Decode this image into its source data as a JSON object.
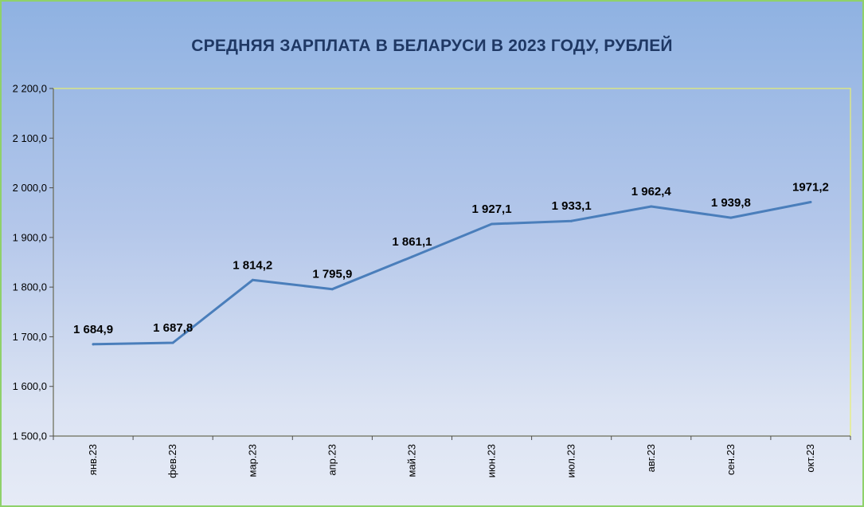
{
  "chart_data": {
    "type": "line",
    "title": "СРЕДНЯЯ ЗАРПЛАТА В БЕЛАРУСИ В 2023 ГОДУ, РУБЛЕЙ",
    "categories": [
      "янв.23",
      "фев.23",
      "мар.23",
      "апр.23",
      "май.23",
      "июн.23",
      "июл.23",
      "авг.23",
      "сен.23",
      "окт.23"
    ],
    "series": [
      {
        "values": [
          1684.9,
          1687.8,
          1814.2,
          1795.9,
          1861.1,
          1927.1,
          1933.1,
          1962.4,
          1939.8,
          1971.2
        ],
        "data_labels": [
          "1 684,9",
          "1 687,8",
          "1 814,2",
          "1 795,9",
          "1 861,1",
          "1 927,1",
          "1 933,1",
          "1 962,4",
          "1 939,8",
          "1971,2"
        ],
        "color": "#4a7ebb"
      }
    ],
    "ylim": [
      1500,
      2200
    ],
    "yticks": [
      1500,
      1600,
      1700,
      1800,
      1900,
      2000,
      2100,
      2200
    ],
    "ytick_labels": [
      "1 500,0",
      "1 600,0",
      "1 700,0",
      "1 800,0",
      "1 900,0",
      "2 000,0",
      "2 100,0",
      "2 200,0"
    ],
    "grid": false,
    "legend": "none",
    "xlabel": "",
    "ylabel": ""
  },
  "colors": {
    "background_top": "#8fb2e2",
    "background_bottom": "#e6ebf6",
    "border": "#8fd16a",
    "plot_border": "#e8f070",
    "line": "#4a7ebb",
    "title": "#1f3864"
  }
}
